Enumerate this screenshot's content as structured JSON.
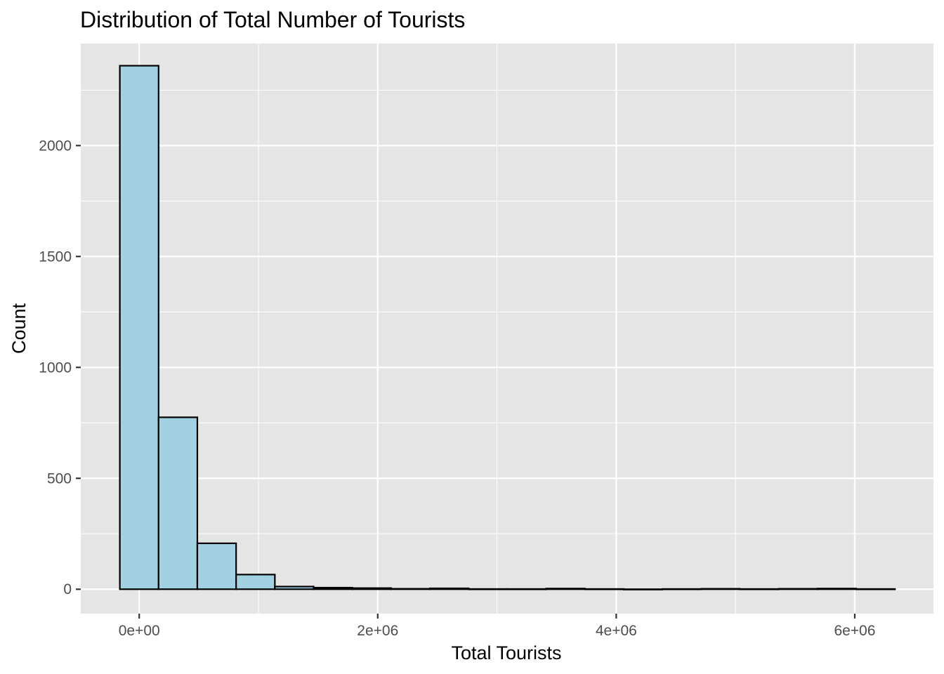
{
  "chart_data": {
    "type": "bar",
    "title": "Distribution of Total Number of Tourists",
    "xlabel": "Total Tourists",
    "ylabel": "Count",
    "bin_width": 325000,
    "bin_centers": [
      0,
      325000,
      650000,
      975000,
      1300000,
      1625000,
      1950000,
      2275000,
      2600000,
      2925000,
      3250000,
      3575000,
      3900000,
      4225000,
      4550000,
      4875000,
      5200000,
      5525000,
      5850000,
      6175000
    ],
    "values": [
      2360,
      775,
      207,
      66,
      12,
      7,
      5,
      2,
      4,
      1,
      1,
      3,
      1,
      0,
      1,
      2,
      1,
      2,
      3,
      1
    ],
    "xlim": [
      -490000,
      6660000
    ],
    "ylim": [
      -110,
      2460
    ],
    "x_ticks": [
      {
        "value": 0,
        "label": "0e+00"
      },
      {
        "value": 2000000,
        "label": "2e+06"
      },
      {
        "value": 4000000,
        "label": "4e+06"
      },
      {
        "value": 6000000,
        "label": "6e+06"
      }
    ],
    "y_ticks": [
      {
        "value": 0,
        "label": "0"
      },
      {
        "value": 500,
        "label": "500"
      },
      {
        "value": 1000,
        "label": "1000"
      },
      {
        "value": 1500,
        "label": "1500"
      },
      {
        "value": 2000,
        "label": "2000"
      }
    ],
    "grid": true,
    "colors": {
      "panel": "#e5e5e5",
      "grid": "#ffffff",
      "bar_fill": "#a2d1e2",
      "bar_stroke": "#000000",
      "tick": "#333333"
    }
  }
}
